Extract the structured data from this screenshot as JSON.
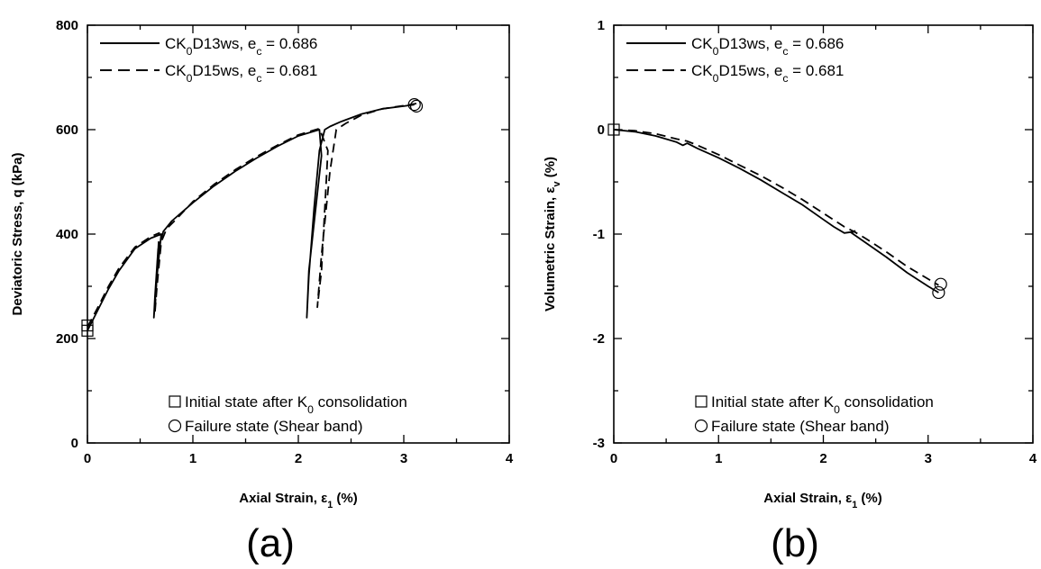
{
  "chart_data": [
    {
      "type": "line",
      "panel_label": "(a)",
      "xlabel": "Axial Strain, ε1 (%)",
      "ylabel": "Deviatoric Stress, q (kPa)",
      "xlim": [
        0,
        4
      ],
      "ylim": [
        0,
        800
      ],
      "x_ticks": [
        0,
        1,
        2,
        3,
        4
      ],
      "y_ticks": [
        0,
        200,
        400,
        600,
        800
      ],
      "grid": false,
      "legend": {
        "placement": "top-left",
        "entries": [
          {
            "text": "CK0D13ws, ec = 0.686",
            "style": "solid"
          },
          {
            "text": "CK0D15ws, ec = 0.681",
            "style": "dashed"
          }
        ]
      },
      "marker_legend": {
        "placement": "bottom-right",
        "entries": [
          {
            "marker": "square",
            "text": "Initial state after K0 consolidation"
          },
          {
            "marker": "circle",
            "text": "Failure state (Shear band)"
          }
        ]
      },
      "series": [
        {
          "name": "CK0D13ws, ec = 0.686",
          "style": "solid",
          "x": [
            0.0,
            0.1,
            0.2,
            0.3,
            0.45,
            0.6,
            0.7,
            0.66,
            0.63,
            0.64,
            0.67,
            0.72,
            0.8,
            1.0,
            1.2,
            1.4,
            1.6,
            1.8,
            2.0,
            2.2,
            2.22,
            2.1,
            2.08,
            2.1,
            2.15,
            2.2,
            2.25,
            2.3,
            2.4,
            2.6,
            2.8,
            3.0,
            3.1
          ],
          "y": [
            215,
            255,
            295,
            330,
            372,
            392,
            400,
            320,
            240,
            280,
            370,
            405,
            425,
            460,
            492,
            520,
            545,
            568,
            588,
            600,
            550,
            330,
            240,
            320,
            450,
            560,
            600,
            606,
            615,
            630,
            640,
            645,
            648
          ]
        },
        {
          "name": "CK0D15ws, ec = 0.681",
          "style": "dashed",
          "x": [
            0.0,
            0.1,
            0.2,
            0.3,
            0.45,
            0.6,
            0.68,
            0.66,
            0.64,
            0.66,
            0.7,
            0.75,
            0.85,
            1.0,
            1.2,
            1.4,
            1.6,
            1.8,
            2.0,
            2.2,
            2.28,
            2.22,
            2.18,
            2.22,
            2.3,
            2.36,
            2.45,
            2.6,
            2.8,
            3.0,
            3.12
          ],
          "y": [
            222,
            260,
            300,
            335,
            375,
            395,
            402,
            330,
            250,
            300,
            385,
            410,
            430,
            462,
            495,
            523,
            548,
            570,
            590,
            602,
            560,
            330,
            260,
            360,
            520,
            600,
            612,
            628,
            640,
            646,
            650
          ]
        }
      ],
      "markers": [
        {
          "marker": "square",
          "x": 0.0,
          "y": 215
        },
        {
          "marker": "square",
          "x": 0.0,
          "y": 225
        },
        {
          "marker": "circle",
          "x": 3.1,
          "y": 648
        },
        {
          "marker": "circle",
          "x": 3.12,
          "y": 645
        }
      ]
    },
    {
      "type": "line",
      "panel_label": "(b)",
      "xlabel": "Axial Strain, ε1 (%)",
      "ylabel": "Volumetric Strain, εv (%)",
      "xlim": [
        0,
        4
      ],
      "ylim": [
        -3,
        1
      ],
      "x_ticks": [
        0,
        1,
        2,
        3,
        4
      ],
      "y_ticks": [
        -3,
        -2,
        -1,
        0,
        1
      ],
      "grid": false,
      "legend": {
        "placement": "top-left",
        "entries": [
          {
            "text": "CK0D13ws, ec = 0.686",
            "style": "solid"
          },
          {
            "text": "CK0D15ws, ec = 0.681",
            "style": "dashed"
          }
        ]
      },
      "marker_legend": {
        "placement": "bottom-right",
        "entries": [
          {
            "marker": "square",
            "text": "Initial state after K0 consolidation"
          },
          {
            "marker": "circle",
            "text": "Failure state (Shear band)"
          }
        ]
      },
      "series": [
        {
          "name": "CK0D13ws, ec = 0.686",
          "style": "solid",
          "x": [
            0.0,
            0.2,
            0.4,
            0.6,
            0.66,
            0.7,
            0.8,
            1.0,
            1.2,
            1.4,
            1.6,
            1.8,
            2.0,
            2.1,
            2.2,
            2.27,
            2.3,
            2.27,
            2.4,
            2.6,
            2.8,
            3.0,
            3.1
          ],
          "y": [
            0.0,
            -0.02,
            -0.06,
            -0.12,
            -0.15,
            -0.13,
            -0.18,
            -0.27,
            -0.37,
            -0.48,
            -0.6,
            -0.72,
            -0.86,
            -0.93,
            -0.99,
            -0.98,
            -0.97,
            -0.99,
            -1.08,
            -1.22,
            -1.37,
            -1.5,
            -1.56
          ]
        },
        {
          "name": "CK0D15ws, ec = 0.681",
          "style": "dashed",
          "x": [
            0.0,
            0.2,
            0.4,
            0.6,
            0.7,
            0.8,
            1.0,
            1.2,
            1.4,
            1.6,
            1.8,
            2.0,
            2.2,
            2.3,
            2.4,
            2.6,
            2.8,
            3.0,
            3.1
          ],
          "y": [
            0.0,
            -0.01,
            -0.04,
            -0.09,
            -0.11,
            -0.15,
            -0.24,
            -0.34,
            -0.44,
            -0.55,
            -0.67,
            -0.8,
            -0.93,
            -0.98,
            -1.04,
            -1.17,
            -1.31,
            -1.43,
            -1.49
          ]
        }
      ],
      "markers": [
        {
          "marker": "square",
          "x": 0.0,
          "y": 0.0
        },
        {
          "marker": "circle",
          "x": 3.12,
          "y": -1.48
        },
        {
          "marker": "circle",
          "x": 3.1,
          "y": -1.56
        }
      ]
    }
  ]
}
